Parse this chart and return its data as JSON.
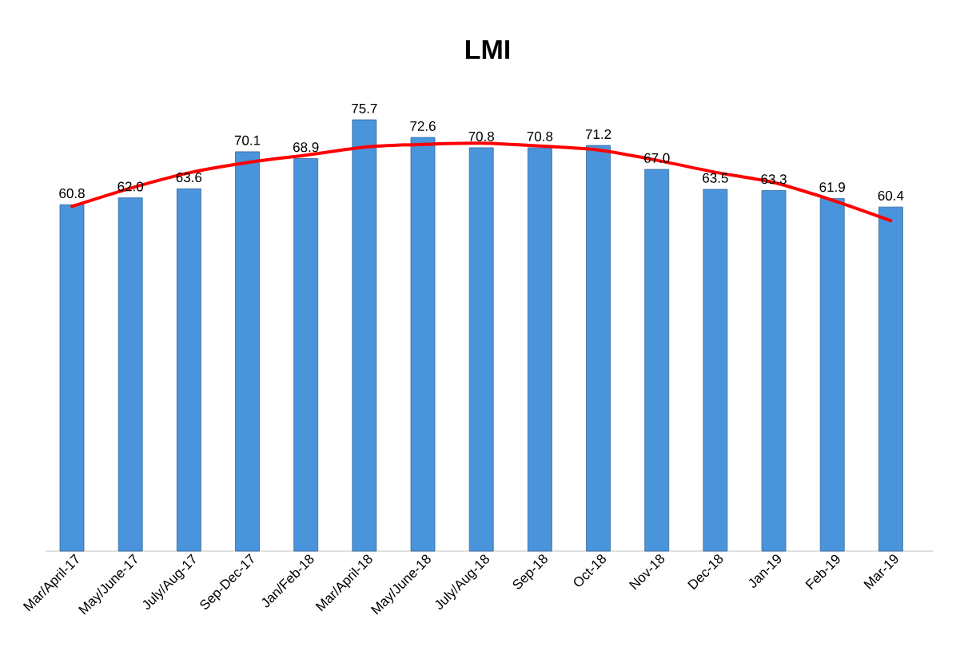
{
  "chart_data": {
    "type": "bar",
    "title": "LMI",
    "categories": [
      "Mar/April-17",
      "May/June-17",
      "July/Aug-17",
      "Sep-Dec-17",
      "Jan/Feb-18",
      "Mar/April-18",
      "May/June-18",
      "July/Aug-18",
      "Sep-18",
      "Oct-18",
      "Nov-18",
      "Dec-18",
      "Jan-19",
      "Feb-19",
      "Mar-19"
    ],
    "series": [
      {
        "color": "#4a94dc",
        "values": [
          60.8,
          62.0,
          63.6,
          70.1,
          68.9,
          75.7,
          72.6,
          70.8,
          70.8,
          71.2,
          67.0,
          63.5,
          63.3,
          61.9,
          60.4
        ],
        "value_labels": [
          "60.8",
          "62.0",
          "63.6",
          "70.1",
          "68.9",
          "75.7",
          "72.6",
          "70.8",
          "70.8",
          "71.2",
          "67.0",
          "63.5",
          "63.3",
          "61.9",
          "60.4"
        ]
      },
      {
        "type": "line",
        "color": "#ff0000",
        "values": [
          60.5,
          63.7,
          66.4,
          68.2,
          69.5,
          70.9,
          71.4,
          71.6,
          71.1,
          70.4,
          68.6,
          66.5,
          64.7,
          61.6,
          58.0
        ]
      }
    ],
    "tick_labels": "x"
  }
}
